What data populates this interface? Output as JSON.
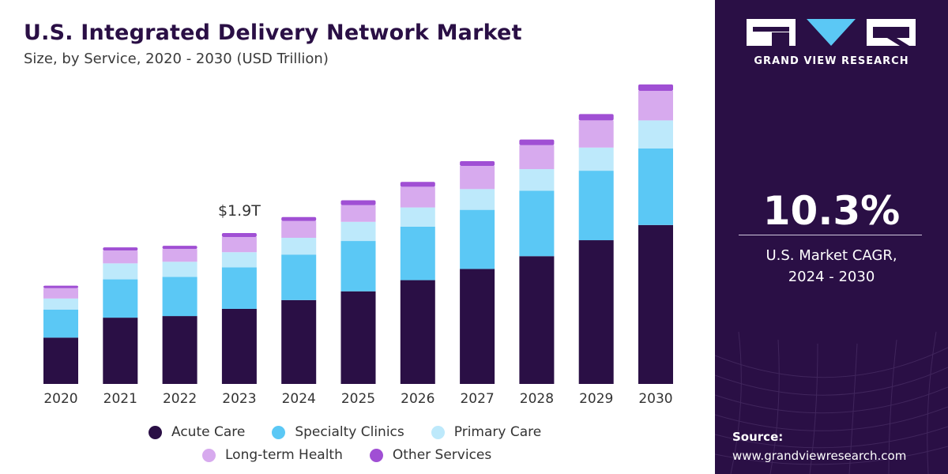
{
  "header": {
    "title": "U.S. Integrated Delivery Network Market",
    "subtitle": "Size, by Service, 2020 - 2030 (USD Trillion)"
  },
  "chart_data": {
    "type": "bar",
    "stacked": true,
    "categories": [
      "2020",
      "2021",
      "2022",
      "2023",
      "2024",
      "2025",
      "2026",
      "2027",
      "2028",
      "2029",
      "2030"
    ],
    "series": [
      {
        "name": "Acute Care",
        "color": "#2a0f45",
        "values": [
          0.58,
          0.83,
          0.85,
          0.94,
          1.05,
          1.16,
          1.3,
          1.44,
          1.6,
          1.8,
          1.99
        ]
      },
      {
        "name": "Specialty Clinics",
        "color": "#5bc8f5",
        "values": [
          0.35,
          0.48,
          0.49,
          0.52,
          0.57,
          0.63,
          0.67,
          0.74,
          0.82,
          0.87,
          0.96
        ]
      },
      {
        "name": "Primary Care",
        "color": "#bde9fb",
        "values": [
          0.14,
          0.2,
          0.19,
          0.19,
          0.21,
          0.24,
          0.24,
          0.26,
          0.27,
          0.29,
          0.35
        ]
      },
      {
        "name": "Long-term Health",
        "color": "#d7aaee",
        "values": [
          0.13,
          0.16,
          0.16,
          0.19,
          0.21,
          0.21,
          0.26,
          0.29,
          0.3,
          0.34,
          0.37
        ]
      },
      {
        "name": "Other Services",
        "color": "#a04fd4",
        "values": [
          0.03,
          0.04,
          0.04,
          0.05,
          0.05,
          0.06,
          0.06,
          0.06,
          0.07,
          0.08,
          0.08
        ]
      }
    ],
    "annotations": [
      {
        "category": "2023",
        "text": "$1.9T"
      }
    ],
    "legend_position": "bottom",
    "grid": false,
    "ylim": [
      0,
      3.75
    ]
  },
  "sidebar": {
    "brand": "GRAND VIEW RESEARCH",
    "cagr_value": "10.3%",
    "cagr_label_line1": "U.S. Market CAGR,",
    "cagr_label_line2": "2024 - 2030",
    "source_label": "Source:",
    "source_url": "www.grandviewresearch.com"
  }
}
